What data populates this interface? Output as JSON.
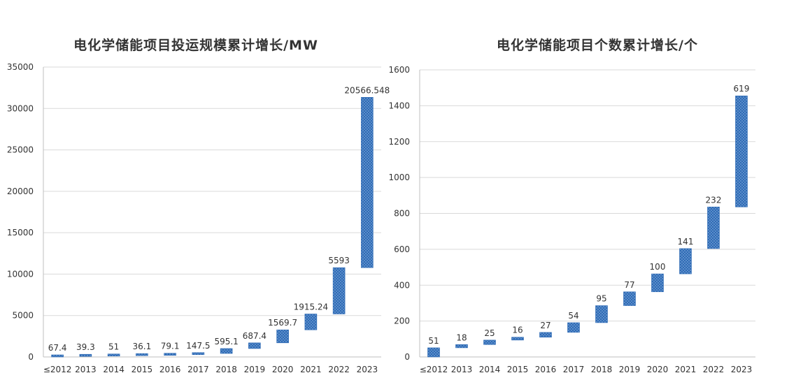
{
  "colors": {
    "bar": "#2f6bb5",
    "bar_dot": "#9cc0ea",
    "grid": "#d9d9d9",
    "axis": "#bfbfbf",
    "text": "#333333"
  },
  "chart_data": [
    {
      "type": "bar",
      "subtype": "waterfall",
      "title": "电化学储能项目投运规模累计增长/MW",
      "categories": [
        "≤2012",
        "2013",
        "2014",
        "2015",
        "2016",
        "2017",
        "2018",
        "2019",
        "2020",
        "2021",
        "2022",
        "2023"
      ],
      "values": [
        67.4,
        39.3,
        51,
        36.1,
        79.1,
        147.5,
        595.1,
        687.4,
        1569.7,
        1915.24,
        5593,
        20566.548
      ],
      "value_labels": [
        "67.4",
        "39.3",
        "51",
        "36.1",
        "79.1",
        "147.5",
        "595.1",
        "687.4",
        "1569.7",
        "1915.24",
        "5593",
        "20566.548"
      ],
      "ylim": [
        0,
        35000
      ],
      "yticks": [
        0,
        5000,
        10000,
        15000,
        20000,
        25000,
        30000,
        35000
      ],
      "xlabel": "",
      "ylabel": "",
      "grid": true
    },
    {
      "type": "bar",
      "subtype": "waterfall",
      "title": "电化学储能项目个数累计增长/个",
      "categories": [
        "≤2012",
        "2013",
        "2014",
        "2015",
        "2016",
        "2017",
        "2018",
        "2019",
        "2020",
        "2021",
        "2022",
        "2023"
      ],
      "values": [
        51,
        18,
        25,
        16,
        27,
        54,
        95,
        77,
        100,
        141,
        232,
        619
      ],
      "value_labels": [
        "51",
        "18",
        "25",
        "16",
        "27",
        "54",
        "95",
        "77",
        "100",
        "141",
        "232",
        "619"
      ],
      "ylim": [
        0,
        1600
      ],
      "yticks": [
        0,
        200,
        400,
        600,
        800,
        1000,
        1200,
        1400,
        1600
      ],
      "xlabel": "",
      "ylabel": "",
      "grid": true
    }
  ]
}
